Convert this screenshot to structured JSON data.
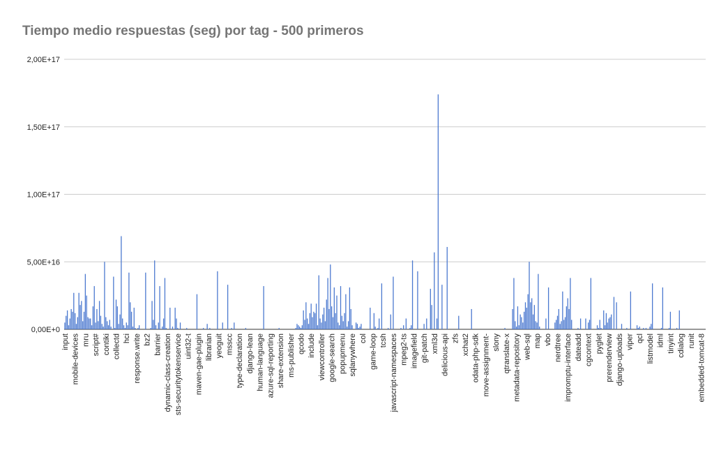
{
  "chart_data": {
    "type": "bar",
    "title": "Tiempo medio respuestas (seg) por tag - 500 primeros",
    "color": "#4a78cf",
    "grid": true,
    "ylim": [
      0,
      2e+17
    ],
    "yticks": [
      {
        "value": 0,
        "label": "0,00E+0"
      },
      {
        "value": 5e+16,
        "label": "5,00E+16"
      },
      {
        "value": 1e+17,
        "label": "1,00E+17"
      },
      {
        "value": 1.5e+17,
        "label": "1,50E+17"
      },
      {
        "value": 2e+17,
        "label": "2,00E+17"
      }
    ],
    "categories": [
      "input",
      null,
      null,
      null,
      null,
      null,
      null,
      null,
      "mobile-devices",
      null,
      null,
      null,
      null,
      null,
      null,
      null,
      "mru",
      null,
      null,
      null,
      null,
      null,
      null,
      null,
      "script#",
      null,
      null,
      null,
      null,
      null,
      null,
      null,
      "contiki",
      null,
      null,
      null,
      null,
      null,
      null,
      null,
      "collectd",
      null,
      null,
      null,
      null,
      null,
      null,
      null,
      "hci",
      null,
      null,
      null,
      null,
      null,
      null,
      null,
      "response.write",
      null,
      null,
      null,
      null,
      null,
      null,
      null,
      "bz2",
      null,
      null,
      null,
      null,
      null,
      null,
      null,
      "barrier",
      null,
      null,
      null,
      null,
      null,
      null,
      null,
      "dynamic-class-creation",
      null,
      null,
      null,
      null,
      null,
      null,
      null,
      "sts-securitytokenservice",
      null,
      null,
      null,
      null,
      null,
      null,
      null,
      "uint32-t",
      null,
      null,
      null,
      null,
      null,
      null,
      null,
      "maven-gae-plugin",
      null,
      null,
      null,
      null,
      null,
      null,
      null,
      "librarian",
      null,
      null,
      null,
      null,
      null,
      null,
      null,
      "yeoguit",
      null,
      null,
      null,
      null,
      null,
      null,
      null,
      "msscc",
      null,
      null,
      null,
      null,
      null,
      null,
      null,
      "type-declaration",
      null,
      null,
      null,
      null,
      null,
      null,
      null,
      "django-lean",
      null,
      null,
      null,
      null,
      null,
      null,
      null,
      "human-language",
      null,
      null,
      null,
      null,
      null,
      null,
      null,
      "azure-sql-reporting",
      null,
      null,
      null,
      null,
      null,
      null,
      null,
      "share-extension",
      null,
      null,
      null,
      null,
      null,
      null,
      null,
      "ms-publisher",
      null,
      null,
      null,
      null,
      null,
      null,
      null,
      "qcodo",
      null,
      null,
      null,
      null,
      null,
      null,
      null,
      "include",
      null,
      null,
      null,
      null,
      null,
      null,
      null,
      "viewcontroller",
      null,
      null,
      null,
      null,
      null,
      null,
      null,
      "google-search",
      null,
      null,
      null,
      null,
      null,
      null,
      null,
      "popupmenu",
      null,
      null,
      null,
      null,
      null,
      null,
      null,
      "sqlanywhere",
      null,
      null,
      null,
      null,
      null,
      null,
      null,
      "col",
      null,
      null,
      null,
      null,
      null,
      null,
      null,
      "game-loop",
      null,
      null,
      null,
      null,
      null,
      null,
      null,
      "tcsh",
      null,
      null,
      null,
      null,
      null,
      null,
      null,
      "javascript-namespaces",
      null,
      null,
      null,
      null,
      null,
      null,
      null,
      "mpeg2-ts",
      null,
      null,
      null,
      null,
      null,
      null,
      null,
      "imagefield",
      null,
      null,
      null,
      null,
      null,
      null,
      null,
      "git-patch",
      null,
      null,
      null,
      null,
      null,
      null,
      null,
      "xml3d",
      null,
      null,
      null,
      null,
      null,
      null,
      null,
      "delicious-api",
      null,
      null,
      null,
      null,
      null,
      null,
      null,
      "zfs",
      null,
      null,
      null,
      null,
      null,
      null,
      null,
      "xchat2",
      null,
      null,
      null,
      null,
      null,
      null,
      null,
      "odata-php-sdk",
      null,
      null,
      null,
      null,
      null,
      null,
      null,
      "move-assignment-",
      null,
      null,
      null,
      null,
      null,
      null,
      null,
      "slony",
      null,
      null,
      null,
      null,
      null,
      null,
      null,
      "qtranslate-x",
      null,
      null,
      null,
      null,
      null,
      null,
      null,
      "metadata-repository",
      null,
      null,
      null,
      null,
      null,
      null,
      null,
      "web-sql",
      null,
      null,
      null,
      null,
      null,
      null,
      null,
      "map",
      null,
      null,
      null,
      null,
      null,
      null,
      null,
      "vbo",
      null,
      null,
      null,
      null,
      null,
      null,
      null,
      "nerdtree",
      null,
      null,
      null,
      null,
      null,
      null,
      null,
      "impromptu-interface",
      null,
      null,
      null,
      null,
      null,
      null,
      null,
      "dateadd",
      null,
      null,
      null,
      null,
      null,
      null,
      null,
      "cgcontext",
      null,
      null,
      null,
      null,
      null,
      null,
      null,
      "pyglet",
      null,
      null,
      null,
      null,
      null,
      null,
      null,
      "prerenderview",
      null,
      null,
      null,
      null,
      null,
      null,
      null,
      "django-uploads",
      null,
      null,
      null,
      null,
      null,
      null,
      null,
      "viper",
      null,
      null,
      null,
      null,
      null,
      null,
      null,
      "qcl",
      null,
      null,
      null,
      null,
      null,
      null,
      null,
      "listmodel",
      null,
      null,
      null,
      null,
      null,
      null,
      null,
      "idml",
      null,
      null,
      null,
      null,
      null,
      null,
      null,
      "tinyint",
      null,
      null,
      null,
      null,
      null,
      null,
      null,
      "cdialog",
      null,
      null,
      null,
      null,
      null,
      null,
      null,
      "runit",
      null,
      null,
      null,
      null,
      null,
      null,
      null,
      "embedded-tomcat-8",
      null,
      null,
      null
    ],
    "values": [
      5000000000000000.0,
      1e+16,
      1.4e+16,
      3000000000000000.0,
      8000000000000000.0,
      1.5e+16,
      1.3e+16,
      2.7e+16,
      1.2e+16,
      4000000000000000.0,
      9000000000000000.0,
      2.7e+16,
      1.8e+16,
      2.1e+16,
      6000000000000000.0,
      1.3e+16,
      4.1e+16,
      2.5e+16,
      9000000000000000.0,
      8000000000000000.0,
      8000000000000000.0,
      3000000000000000.0,
      1.7e+16,
      3.2e+16,
      5000000000000000.0,
      1.5e+16,
      6000000000000000.0,
      2.1e+16,
      1e+16,
      4000000000000000.0,
      2000000000000000.0,
      5e+16,
      9000000000000000.0,
      6000000000000000.0,
      3000000000000000.0,
      7000000000000000.0,
      2000000000000000.0,
      0,
      3.9e+16,
      1000000000000000.0,
      2.2e+16,
      1.7e+16,
      4000000000000000.0,
      1.1e+16,
      6.9e+16,
      8000000000000000.0,
      3000000000000000.0,
      1000000000000000.0,
      5000000000000000.0,
      3000000000000000.0,
      4.2e+16,
      2e+16,
      1.3e+16,
      2000000000000000.0,
      1.6e+16,
      1000000000000000.0,
      0,
      1000000000000000.0,
      3000000000000000.0,
      0,
      0,
      0,
      0,
      4.2e+16,
      0,
      0,
      0,
      1000000000000000.0,
      2.1e+16,
      7000000000000000.0,
      5.1e+16,
      3000000000000000.0,
      0,
      5000000000000000.0,
      3.2e+16,
      0,
      2000000000000000.0,
      8000000000000000.0,
      3.8e+16,
      1000000000000000.0,
      0,
      0,
      1.6e+16,
      0,
      2000000000000000.0,
      0,
      1.6e+16,
      8000000000000000.0,
      1000000000000000.0,
      0,
      5000000000000000.0,
      0,
      0,
      0,
      0,
      1000000000000000.0,
      0,
      0,
      0,
      0,
      0,
      0,
      0,
      2.6e+16,
      0,
      0,
      0,
      0,
      1000000000000000.0,
      0,
      0,
      4000000000000000.0,
      0,
      1000000000000000.0,
      0,
      0,
      0,
      0,
      0,
      4.3e+16,
      0,
      0,
      0,
      5000000000000000.0,
      0,
      0,
      0,
      3.3e+16,
      0,
      0,
      1000000000000000.0,
      0,
      5000000000000000.0,
      0,
      0,
      0,
      0,
      0,
      0,
      0,
      0,
      1000000000000000.0,
      0,
      0,
      0,
      0,
      0,
      0,
      0,
      0,
      0,
      0,
      0,
      0,
      0,
      3.2e+16,
      0,
      0,
      0,
      0,
      0,
      0,
      0,
      0,
      0,
      0,
      0,
      1000000000000000.0,
      0,
      0,
      0,
      0,
      0,
      0,
      0,
      0,
      0,
      0,
      0,
      0,
      1000000000000000.0,
      4000000000000000.0,
      3000000000000000.0,
      2000000000000000.0,
      1000000000000000.0,
      3000000000000000.0,
      1.4e+16,
      7000000000000000.0,
      2e+16,
      8000000000000000.0,
      4000000000000000.0,
      1.2e+16,
      1.9e+16,
      9000000000000000.0,
      1.3e+16,
      1.2e+16,
      1.9e+16,
      3000000000000000.0,
      4e+16,
      8000000000000000.0,
      5000000000000000.0,
      1.1e+16,
      1.6e+16,
      6000000000000000.0,
      2.2e+16,
      3.8e+16,
      1.5e+16,
      4.8e+16,
      1.7e+16,
      9000000000000000.0,
      3.1e+16,
      1.2e+16,
      2.5e+16,
      5000000000000000.0,
      3000000000000000.0,
      3.2e+16,
      1e+16,
      6000000000000000.0,
      1.2e+16,
      2.6e+16,
      2000000000000000.0,
      6000000000000000.0,
      3.1e+16,
      1.5e+16,
      3000000000000000.0,
      0,
      0,
      5000000000000000.0,
      4000000000000000.0,
      1000000000000000.0,
      2000000000000000.0,
      4000000000000000.0,
      0,
      0,
      0,
      0,
      0,
      0,
      1.6e+16,
      0,
      0,
      1.2e+16,
      2000000000000000.0,
      0,
      1000000000000000.0,
      8000000000000000.0,
      0,
      3.4e+16,
      0,
      0,
      0,
      0,
      1000000000000000.0,
      0,
      1.1e+16,
      0,
      3.9e+16,
      0,
      0,
      0,
      0,
      0,
      1000000000000000.0,
      0,
      3000000000000000.0,
      0,
      8000000000000000.0,
      0,
      0,
      1000000000000000.0,
      3000000000000000.0,
      5.1e+16,
      0,
      0,
      0,
      4.3e+16,
      0,
      0,
      0,
      0,
      4000000000000000.0,
      0,
      8000000000000000.0,
      0,
      0,
      3e+16,
      1.8e+16,
      0,
      5.7e+16,
      0,
      8000000000000000.0,
      1.74e+17,
      0,
      0,
      3.3e+16,
      0,
      0,
      0,
      6.1e+16,
      0,
      0,
      0,
      0,
      0,
      0,
      0,
      0,
      1e+16,
      0,
      0,
      0,
      0,
      0,
      0,
      0,
      0,
      0,
      1.5e+16,
      0,
      0,
      0,
      0,
      0,
      0,
      0,
      0,
      0,
      0,
      0,
      0,
      0,
      0,
      0,
      0,
      0,
      0,
      0,
      0,
      0,
      0,
      0,
      0,
      0,
      1000000000000000.0,
      0,
      0,
      0,
      0,
      0,
      1.5e+16,
      3.8e+16,
      6000000000000000.0,
      2000000000000000.0,
      1.7e+16,
      3000000000000000.0,
      1.1e+16,
      9000000000000000.0,
      5000000000000000.0,
      1.3e+16,
      2e+16,
      1.6e+16,
      2.6e+16,
      5e+16,
      2e+16,
      2.3e+16,
      1.1e+16,
      1.8e+16,
      6000000000000000.0,
      5000000000000000.0,
      4.1e+16,
      2000000000000000.0,
      0,
      0,
      0,
      0,
      8000000000000000.0,
      0,
      3.1e+16,
      0,
      0,
      0,
      0,
      5000000000000000.0,
      7000000000000000.0,
      1e+16,
      1.5e+16,
      4000000000000000.0,
      6000000000000000.0,
      2.8e+16,
      7000000000000000.0,
      9000000000000000.0,
      1.7e+16,
      2.3e+16,
      1.5e+16,
      3.8e+16,
      7000000000000000.0,
      0,
      0,
      0,
      0,
      1000000000000000.0,
      0,
      8000000000000000.0,
      0,
      0,
      0,
      8000000000000000.0,
      0,
      5000000000000000.0,
      7000000000000000.0,
      3.8e+16,
      0,
      0,
      0,
      0,
      3000000000000000.0,
      1000000000000000.0,
      7000000000000000.0,
      1000000000000000.0,
      0,
      1.4e+16,
      3000000000000000.0,
      1.2e+16,
      5000000000000000.0,
      8000000000000000.0,
      9000000000000000.0,
      1.1e+16,
      0,
      2.4e+16,
      0,
      2e+16,
      0,
      0,
      0,
      4000000000000000.0,
      0,
      0,
      0,
      1000000000000000.0,
      0,
      0,
      2.8e+16,
      0,
      0,
      0,
      0,
      3000000000000000.0,
      1000000000000000.0,
      2000000000000000.0,
      0,
      0,
      1000000000000000.0,
      0,
      1000000000000000.0,
      0,
      0,
      2000000000000000.0,
      4000000000000000.0,
      3.4e+16,
      0,
      0,
      0,
      0,
      0,
      0,
      1000000000000000.0,
      3.1e+16,
      0,
      0,
      0,
      0,
      1000000000000000.0,
      1.3e+16,
      0,
      0,
      0,
      0,
      1000000000000000.0,
      0,
      1.4e+16,
      0,
      0,
      0,
      0,
      0,
      0,
      0,
      0,
      0,
      0,
      0,
      0,
      0,
      0,
      0,
      0,
      0,
      0,
      0,
      0
    ]
  }
}
